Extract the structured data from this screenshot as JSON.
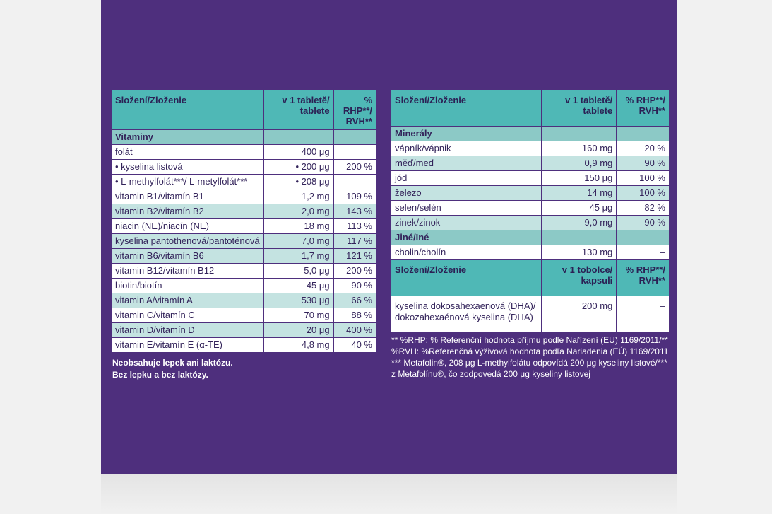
{
  "left_table": {
    "header": {
      "col1": "Složení/Zloženie",
      "col2": "v 1 tabletě/ tablete",
      "col3": "% RHP**/ RVH**"
    },
    "group": "Vitaminy",
    "rows": [
      {
        "name": "folát",
        "amount": "400 μg",
        "pct": "",
        "style": "w"
      },
      {
        "name": "• kyselina listová",
        "amount": "• 200 μg",
        "pct": "200 %",
        "style": "w"
      },
      {
        "name": "• L-methylfolát***/ L-metylfolát***",
        "amount": "• 208 μg",
        "pct": "",
        "style": "w"
      },
      {
        "name": "vitamin B1/vitamín B1",
        "amount": "1,2 mg",
        "pct": "109 %",
        "style": "w"
      },
      {
        "name": "vitamin B2/vitamín B2",
        "amount": "2,0 mg",
        "pct": "143 %",
        "style": "t"
      },
      {
        "name": "niacin (NE)/niacín (NE)",
        "amount": "18 mg",
        "pct": "113 %",
        "style": "w"
      },
      {
        "name": "kyselina pantothenová/pantoténová",
        "amount": "7,0 mg",
        "pct": "117 %",
        "style": "t"
      },
      {
        "name": "vitamin B6/vitamín B6",
        "amount": "1,7 mg",
        "pct": "121 %",
        "style": "t"
      },
      {
        "name": "vitamin B12/vitamín B12",
        "amount": "5,0 μg",
        "pct": "200 %",
        "style": "w"
      },
      {
        "name": "biotin/biotín",
        "amount": "45 μg",
        "pct": "90 %",
        "style": "w"
      },
      {
        "name": "vitamin A/vitamín A",
        "amount": "530 μg",
        "pct": "66 %",
        "style": "t"
      },
      {
        "name": "vitamin C/vitamín C",
        "amount": "70 mg",
        "pct": "88 %",
        "style": "w"
      },
      {
        "name": "vitamin D/vitamín D",
        "amount": "20 μg",
        "pct": "400 %",
        "style": "t"
      },
      {
        "name": "vitamin E/vitamín E (α-TE)",
        "amount": "4,8 mg",
        "pct": "40 %",
        "style": "w"
      }
    ]
  },
  "right_table": {
    "header": {
      "col1": "Složení/Zloženie",
      "col2": "v 1 tabletě/ tablete",
      "col3": "% RHP**/ RVH**"
    },
    "group1": "Minerály",
    "minerals": [
      {
        "name": "vápník/vápnik",
        "amount": "160 mg",
        "pct": "20 %",
        "style": "w"
      },
      {
        "name": "měď/meď",
        "amount": "0,9 mg",
        "pct": "90 %",
        "style": "t"
      },
      {
        "name": "jód",
        "amount": "150 μg",
        "pct": "100 %",
        "style": "w"
      },
      {
        "name": "železo",
        "amount": "14 mg",
        "pct": "100 %",
        "style": "t"
      },
      {
        "name": "selen/selén",
        "amount": "45 μg",
        "pct": "82 %",
        "style": "w"
      },
      {
        "name": "zinek/zinok",
        "amount": "9,0 mg",
        "pct": "90 %",
        "style": "t"
      }
    ],
    "group2": "Jiné/Iné",
    "other": [
      {
        "name": "cholin/cholín",
        "amount": "130 mg",
        "pct": "–",
        "style": "w"
      }
    ],
    "header2": {
      "col1": "Složení/Zloženie",
      "col2": "v 1 tobolce/ kapsuli",
      "col3": "% RHP**/ RVH**"
    },
    "dha": {
      "name_line1": "kyselina dokosahexaenová (DHA)/",
      "name_line2": "dokozahexaénová kyselina (DHA)",
      "amount": "200 mg",
      "pct": "–"
    }
  },
  "notes_left": {
    "line1": "Neobsahuje lepek ani laktózu.",
    "line2": "Bez lepku a bez laktózy."
  },
  "notes_right": {
    "line1": "**  %RHP: % Referenční hodnota příjmu podle Nařízení (EU) 1169/2011/**",
    "line2": "%RVH: %Referenčná výživová hodnota podľa Nariadenia (EÚ)  1169/2011",
    "line3": "*** Metafolin®, 208 μg L-methylfolátu odpovídá 200 μg kyseliny listové/***",
    "line4": "z Metafolínu®, čo zodpovedá 200 μg kyseliny listovej"
  },
  "colors": {
    "background": "#4e2f7d",
    "header": "#4fb8b6",
    "group": "#8cc9c6",
    "light_row": "#c4e3e1"
  }
}
